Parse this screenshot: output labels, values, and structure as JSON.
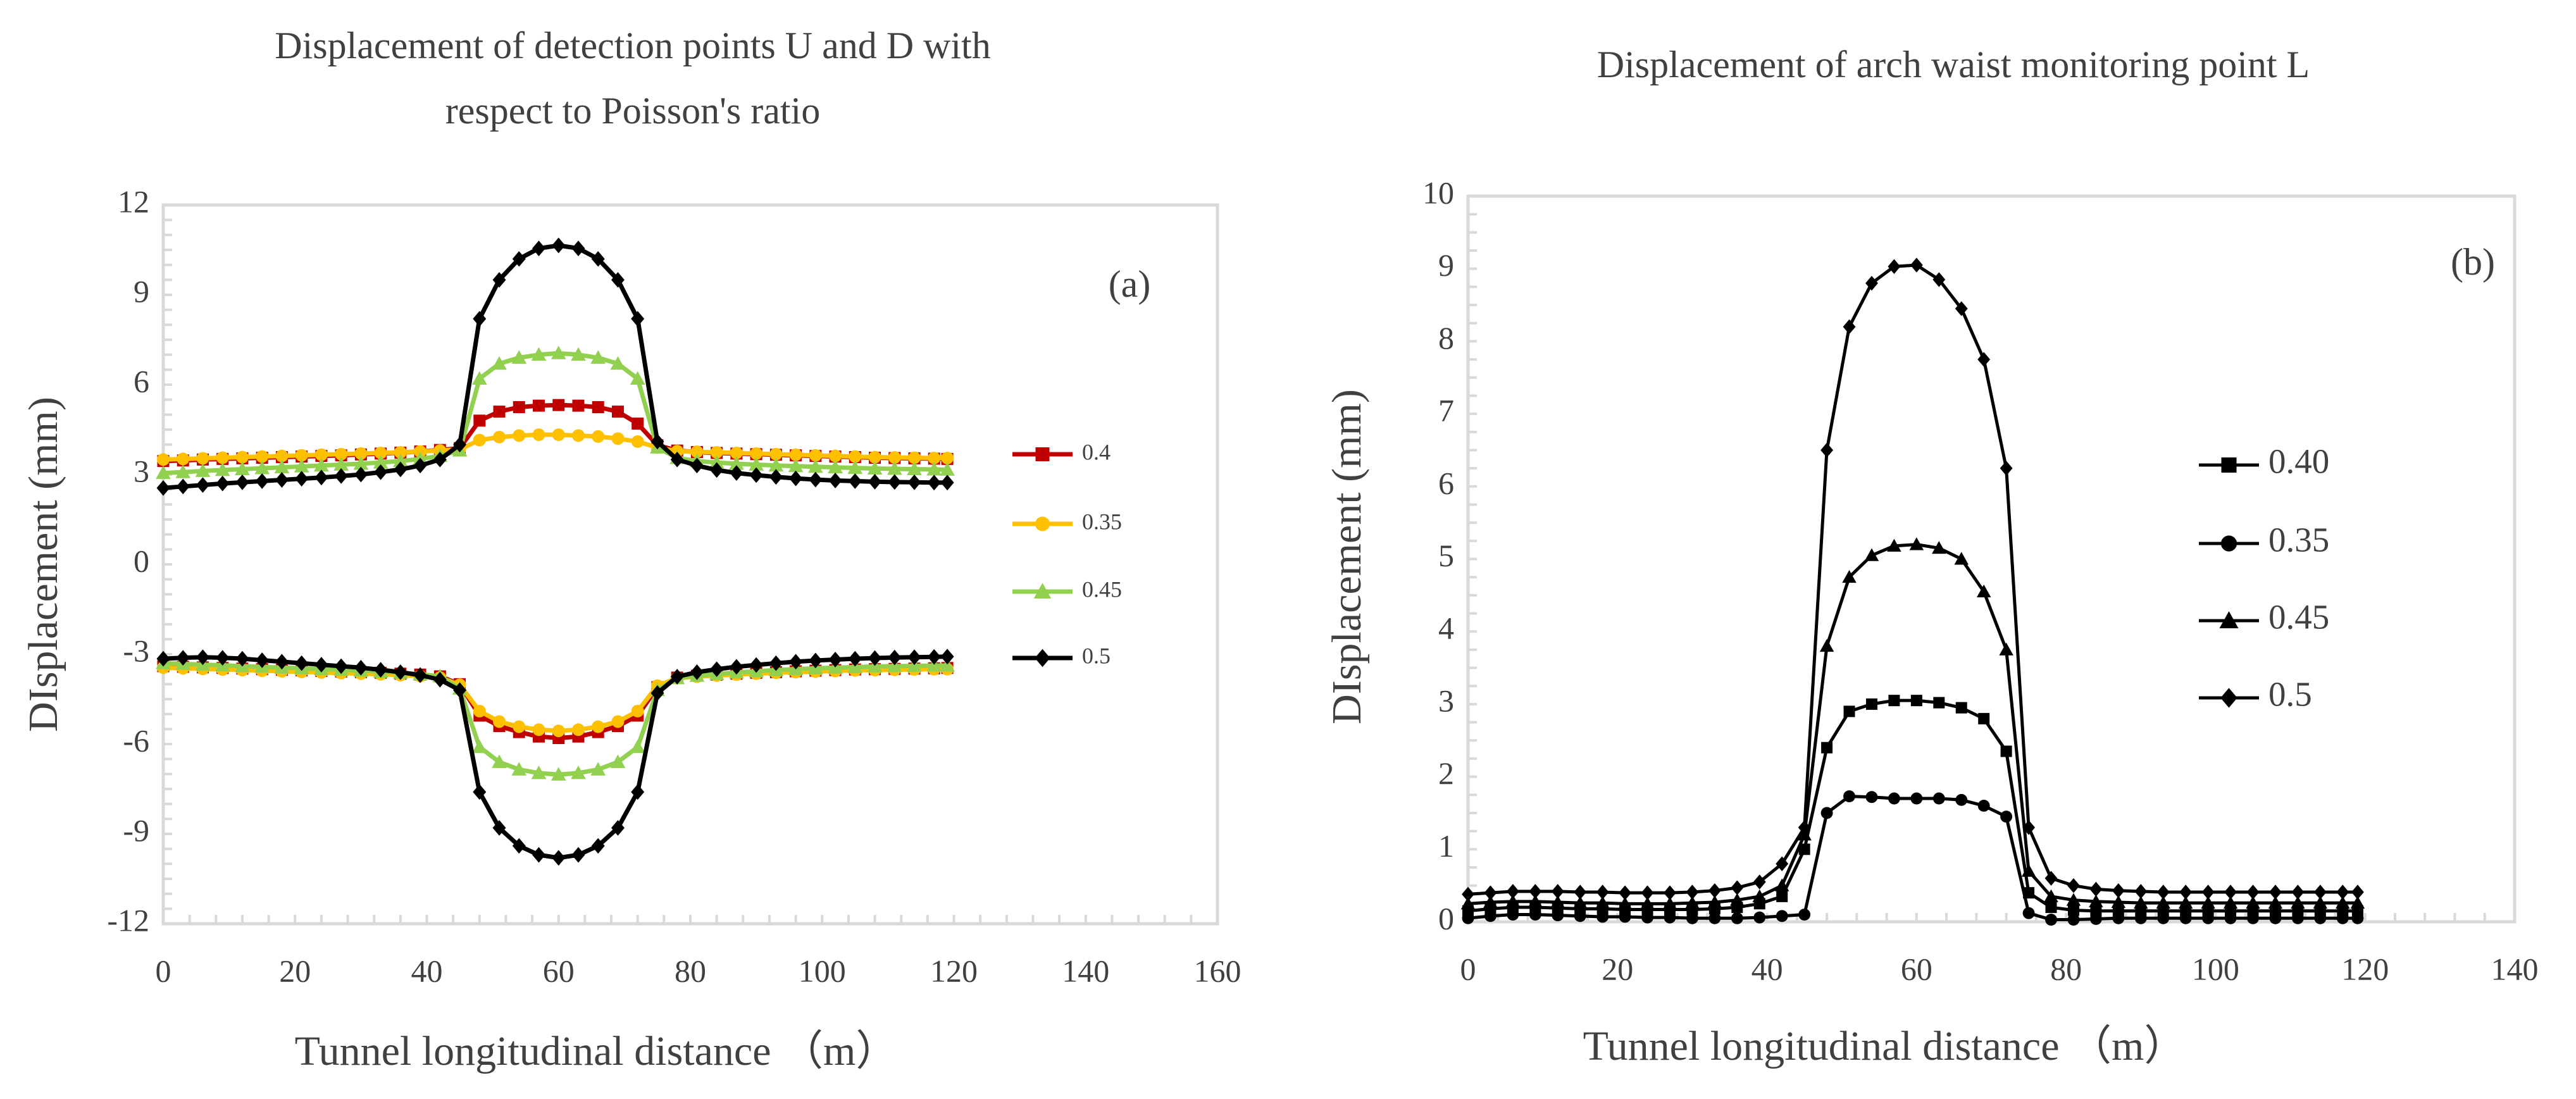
{
  "chart_data": [
    {
      "type": "line",
      "panel_label": "(a)",
      "title": "Displacement of detection points U and D with respect to Poisson's ratio",
      "title_lines": [
        "Displacement of detection points U and D with",
        "respect to Poisson's ratio"
      ],
      "xlabel": "Tunnel longitudinal distance （m）",
      "ylabel": "DIsplacement (mm)",
      "xlim": [
        0,
        160
      ],
      "ylim": [
        -12,
        12
      ],
      "xticks": [
        0,
        20,
        40,
        60,
        80,
        100,
        120,
        140,
        160
      ],
      "yticks": [
        12,
        9,
        6,
        3,
        0,
        -3,
        -6,
        -9,
        -12
      ],
      "x": [
        0,
        3,
        6,
        9,
        12,
        15,
        18,
        21,
        24,
        27,
        30,
        33,
        36,
        39,
        42,
        45,
        48,
        51,
        54,
        57,
        60,
        63,
        66,
        69,
        72,
        75,
        78,
        81,
        84,
        87,
        90,
        93,
        96,
        99,
        102,
        105,
        108,
        111,
        114,
        117,
        119
      ],
      "series": [
        {
          "name": "0.4",
          "color": "#C00000",
          "marker": "square",
          "upper": [
            3.45,
            3.47,
            3.5,
            3.52,
            3.54,
            3.56,
            3.58,
            3.6,
            3.62,
            3.64,
            3.67,
            3.7,
            3.73,
            3.77,
            3.82,
            3.88,
            4.8,
            5.1,
            5.25,
            5.3,
            5.32,
            5.3,
            5.25,
            5.1,
            4.7,
            3.98,
            3.8,
            3.75,
            3.72,
            3.7,
            3.68,
            3.66,
            3.64,
            3.62,
            3.6,
            3.58,
            3.56,
            3.55,
            3.54,
            3.53,
            3.52
          ],
          "lower": [
            -3.4,
            -3.42,
            -3.44,
            -3.46,
            -3.48,
            -3.5,
            -3.52,
            -3.54,
            -3.56,
            -3.58,
            -3.6,
            -3.62,
            -3.65,
            -3.68,
            -3.74,
            -4.0,
            -5.05,
            -5.4,
            -5.6,
            -5.75,
            -5.8,
            -5.75,
            -5.6,
            -5.4,
            -5.05,
            -4.1,
            -3.78,
            -3.72,
            -3.68,
            -3.65,
            -3.62,
            -3.6,
            -3.57,
            -3.55,
            -3.53,
            -3.51,
            -3.5,
            -3.49,
            -3.48,
            -3.47,
            -3.46
          ]
        },
        {
          "name": "0.35",
          "color": "#FFC000",
          "marker": "circle",
          "upper": [
            3.5,
            3.52,
            3.54,
            3.56,
            3.58,
            3.6,
            3.62,
            3.64,
            3.66,
            3.68,
            3.7,
            3.72,
            3.74,
            3.77,
            3.8,
            3.84,
            4.15,
            4.25,
            4.3,
            4.33,
            4.33,
            4.3,
            4.27,
            4.2,
            4.1,
            3.9,
            3.78,
            3.76,
            3.74,
            3.72,
            3.7,
            3.68,
            3.66,
            3.64,
            3.62,
            3.6,
            3.58,
            3.57,
            3.56,
            3.55,
            3.55
          ],
          "lower": [
            -3.45,
            -3.47,
            -3.49,
            -3.51,
            -3.53,
            -3.55,
            -3.57,
            -3.59,
            -3.61,
            -3.63,
            -3.65,
            -3.67,
            -3.7,
            -3.73,
            -3.78,
            -4.02,
            -4.9,
            -5.25,
            -5.42,
            -5.52,
            -5.56,
            -5.52,
            -5.42,
            -5.25,
            -4.9,
            -4.05,
            -3.8,
            -3.75,
            -3.71,
            -3.68,
            -3.65,
            -3.62,
            -3.6,
            -3.58,
            -3.56,
            -3.54,
            -3.53,
            -3.52,
            -3.51,
            -3.5,
            -3.5
          ]
        },
        {
          "name": "0.45",
          "color": "#92D050",
          "marker": "triangle",
          "upper": [
            3.05,
            3.08,
            3.12,
            3.15,
            3.18,
            3.21,
            3.24,
            3.27,
            3.3,
            3.33,
            3.36,
            3.4,
            3.45,
            3.52,
            3.62,
            3.8,
            6.2,
            6.7,
            6.9,
            7.0,
            7.05,
            7.0,
            6.9,
            6.7,
            6.2,
            3.9,
            3.55,
            3.45,
            3.4,
            3.36,
            3.33,
            3.3,
            3.28,
            3.26,
            3.24,
            3.22,
            3.2,
            3.19,
            3.18,
            3.17,
            3.16
          ],
          "lower": [
            -3.3,
            -3.32,
            -3.35,
            -3.37,
            -3.4,
            -3.42,
            -3.45,
            -3.47,
            -3.5,
            -3.52,
            -3.55,
            -3.58,
            -3.62,
            -3.67,
            -3.74,
            -4.15,
            -6.1,
            -6.6,
            -6.85,
            -6.97,
            -7.02,
            -6.97,
            -6.85,
            -6.6,
            -6.1,
            -4.2,
            -3.8,
            -3.72,
            -3.66,
            -3.61,
            -3.57,
            -3.53,
            -3.5,
            -3.47,
            -3.45,
            -3.43,
            -3.41,
            -3.4,
            -3.39,
            -3.38,
            -3.38
          ]
        },
        {
          "name": "0.5",
          "color": "#000000",
          "marker": "diamond",
          "upper": [
            2.55,
            2.6,
            2.65,
            2.7,
            2.74,
            2.78,
            2.82,
            2.86,
            2.9,
            2.95,
            3.0,
            3.08,
            3.17,
            3.3,
            3.5,
            4.0,
            8.2,
            9.5,
            10.2,
            10.55,
            10.65,
            10.55,
            10.2,
            9.5,
            8.2,
            4.1,
            3.5,
            3.3,
            3.15,
            3.05,
            2.98,
            2.92,
            2.87,
            2.83,
            2.8,
            2.78,
            2.76,
            2.75,
            2.74,
            2.73,
            2.73
          ],
          "lower": [
            -3.15,
            -3.12,
            -3.1,
            -3.12,
            -3.15,
            -3.2,
            -3.25,
            -3.3,
            -3.35,
            -3.4,
            -3.45,
            -3.52,
            -3.6,
            -3.7,
            -3.85,
            -4.2,
            -7.6,
            -8.8,
            -9.4,
            -9.7,
            -9.8,
            -9.7,
            -9.4,
            -8.8,
            -7.6,
            -4.3,
            -3.75,
            -3.6,
            -3.5,
            -3.42,
            -3.36,
            -3.3,
            -3.25,
            -3.21,
            -3.18,
            -3.15,
            -3.13,
            -3.11,
            -3.1,
            -3.09,
            -3.08
          ]
        }
      ]
    },
    {
      "type": "line",
      "panel_label": "(b)",
      "title": "Displacement of arch waist monitoring point L",
      "title_lines": [
        "Displacement of arch waist monitoring point L"
      ],
      "xlabel": "Tunnel longitudinal distance （m）",
      "ylabel": "DIsplacement (mm)",
      "xlim": [
        0,
        140
      ],
      "ylim": [
        0,
        10
      ],
      "xticks": [
        0,
        20,
        40,
        60,
        80,
        100,
        120,
        140
      ],
      "yticks": [
        10,
        9,
        8,
        7,
        6,
        5,
        4,
        3,
        2,
        1,
        0
      ],
      "x": [
        0,
        3,
        6,
        9,
        12,
        15,
        18,
        21,
        24,
        27,
        30,
        33,
        36,
        39,
        42,
        45,
        48,
        51,
        54,
        57,
        60,
        63,
        66,
        69,
        72,
        75,
        78,
        81,
        84,
        87,
        90,
        93,
        96,
        99,
        102,
        105,
        108,
        111,
        114,
        117,
        119
      ],
      "series": [
        {
          "name": "0.40",
          "color": "#000000",
          "marker": "square",
          "values": [
            0.15,
            0.18,
            0.2,
            0.2,
            0.19,
            0.18,
            0.18,
            0.17,
            0.17,
            0.17,
            0.17,
            0.18,
            0.2,
            0.25,
            0.35,
            1.0,
            2.4,
            2.9,
            3.0,
            3.05,
            3.05,
            3.02,
            2.95,
            2.8,
            2.35,
            0.4,
            0.2,
            0.16,
            0.15,
            0.15,
            0.15,
            0.15,
            0.15,
            0.15,
            0.15,
            0.15,
            0.15,
            0.15,
            0.15,
            0.15,
            0.15
          ]
        },
        {
          "name": "0.35",
          "color": "#000000",
          "marker": "circle",
          "values": [
            0.05,
            0.08,
            0.1,
            0.1,
            0.09,
            0.08,
            0.07,
            0.07,
            0.06,
            0.06,
            0.05,
            0.05,
            0.05,
            0.06,
            0.08,
            0.1,
            1.5,
            1.73,
            1.72,
            1.7,
            1.7,
            1.7,
            1.68,
            1.6,
            1.45,
            0.12,
            0.03,
            0.03,
            0.04,
            0.05,
            0.05,
            0.05,
            0.05,
            0.05,
            0.05,
            0.05,
            0.05,
            0.05,
            0.05,
            0.05,
            0.05
          ]
        },
        {
          "name": "0.45",
          "color": "#000000",
          "marker": "triangle",
          "values": [
            0.25,
            0.27,
            0.28,
            0.28,
            0.27,
            0.26,
            0.26,
            0.25,
            0.25,
            0.25,
            0.26,
            0.27,
            0.3,
            0.35,
            0.5,
            1.2,
            3.8,
            4.75,
            5.05,
            5.18,
            5.2,
            5.15,
            5.0,
            4.55,
            3.75,
            0.7,
            0.35,
            0.3,
            0.28,
            0.27,
            0.26,
            0.26,
            0.26,
            0.26,
            0.26,
            0.26,
            0.26,
            0.26,
            0.26,
            0.26,
            0.26
          ]
        },
        {
          "name": "0.5",
          "color": "#000000",
          "marker": "diamond",
          "values": [
            0.38,
            0.4,
            0.42,
            0.42,
            0.42,
            0.41,
            0.41,
            0.4,
            0.4,
            0.4,
            0.41,
            0.43,
            0.47,
            0.55,
            0.8,
            1.3,
            6.5,
            8.2,
            8.8,
            9.03,
            9.05,
            8.85,
            8.45,
            7.75,
            6.25,
            1.3,
            0.6,
            0.5,
            0.45,
            0.43,
            0.42,
            0.41,
            0.41,
            0.41,
            0.41,
            0.41,
            0.41,
            0.41,
            0.41,
            0.41,
            0.41
          ]
        }
      ]
    }
  ]
}
